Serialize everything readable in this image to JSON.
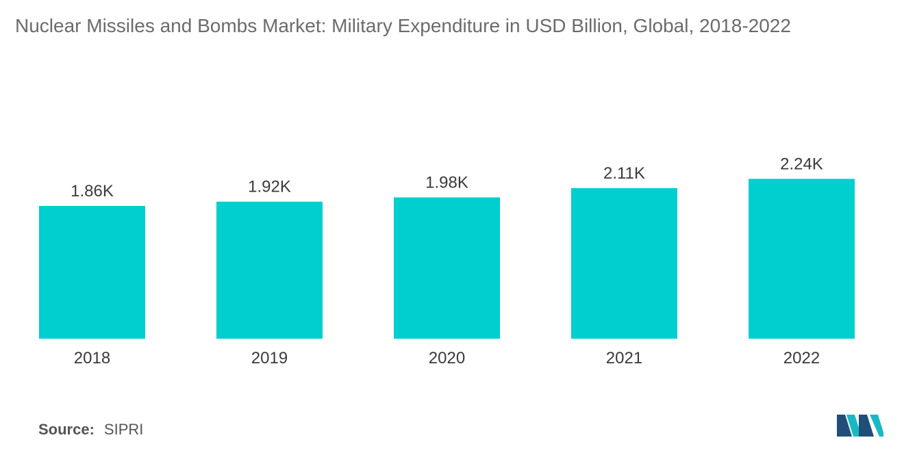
{
  "title": "Nuclear Missiles and Bombs Market: Military Expenditure in USD Billion, Global, 2018-2022",
  "source": {
    "label": "Source:",
    "value": "SIPRI"
  },
  "colors": {
    "bar": "#00cfcf",
    "logo_dark": "#1f4e79",
    "logo_teal": "#19b9c3"
  },
  "logo_icon": "mordor-intelligence-logo",
  "chart_data": {
    "type": "bar",
    "title": "Nuclear Missiles and Bombs Market: Military Expenditure in USD Billion, Global, 2018-2022",
    "categories": [
      "2018",
      "2019",
      "2020",
      "2021",
      "2022"
    ],
    "values": [
      1860,
      1920,
      1980,
      2110,
      2240
    ],
    "data_labels": [
      "1.86K",
      "1.92K",
      "1.98K",
      "2.11K",
      "2.24K"
    ],
    "xlabel": "",
    "ylabel": "",
    "grid": false,
    "legend": "none"
  }
}
